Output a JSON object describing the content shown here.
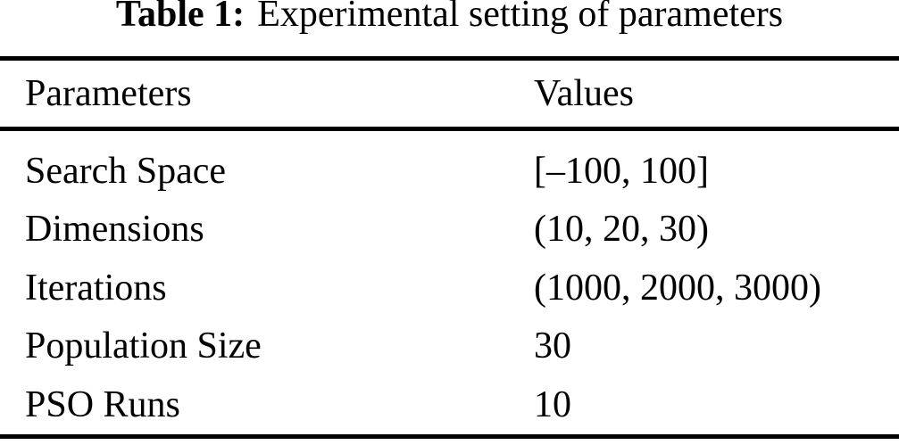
{
  "page": {
    "background": "#ffffff",
    "text_color": "#000000",
    "rule_color": "#000000"
  },
  "caption": {
    "label": "Table 1:",
    "text": "Experimental setting of parameters"
  },
  "table": {
    "columns": [
      "Parameters",
      "Values"
    ],
    "rows": [
      {
        "parameter": "Search Space",
        "value": "[–100, 100]"
      },
      {
        "parameter": "Dimensions",
        "value": "(10, 20, 30)"
      },
      {
        "parameter": "Iterations",
        "value": "(1000, 2000, 3000)"
      },
      {
        "parameter": "Population Size",
        "value": "30"
      },
      {
        "parameter": "PSO Runs",
        "value": "10"
      }
    ]
  }
}
